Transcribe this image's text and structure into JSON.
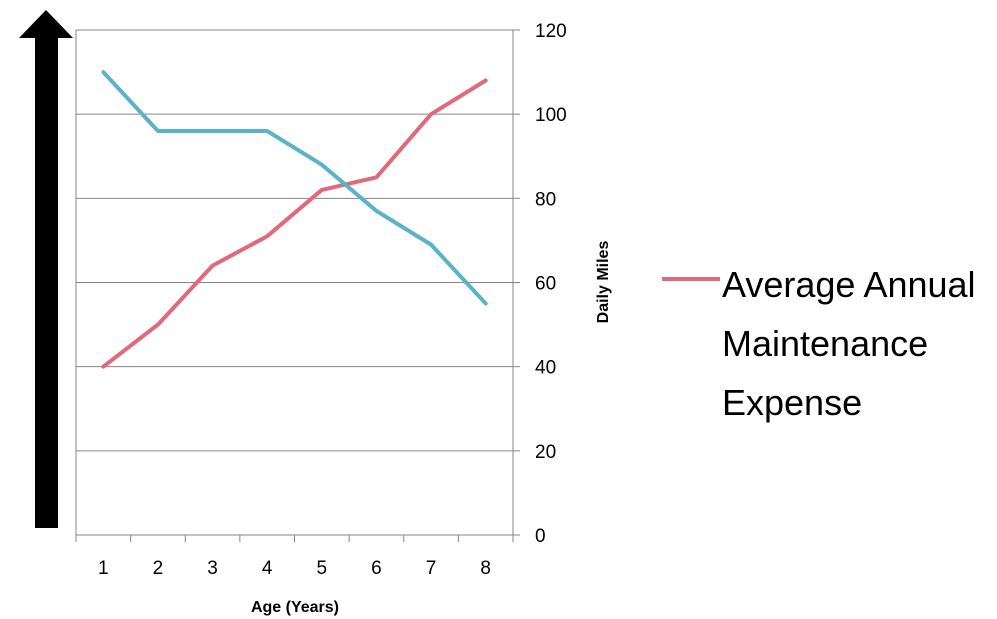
{
  "chart_data": {
    "type": "line",
    "x": [
      1,
      2,
      3,
      4,
      5,
      6,
      7,
      8
    ],
    "xlabel": "Age (Years)",
    "ylabel_right": "Daily Miles",
    "ylim": [
      0,
      120
    ],
    "yticks": [
      0,
      20,
      40,
      60,
      80,
      100,
      120
    ],
    "grid": true,
    "legend_position": "right",
    "series": [
      {
        "name": "Average Annual Maintenance Expense",
        "color": "#e06a7c",
        "values": [
          40,
          50,
          64,
          71,
          82,
          85,
          100,
          108
        ]
      },
      {
        "name": "",
        "color": "#5ab3c9",
        "values": [
          110,
          96,
          96,
          96,
          88,
          77,
          69,
          55
        ]
      }
    ],
    "annotations": {
      "left_arrow": "black-up-arrow-icon"
    }
  }
}
